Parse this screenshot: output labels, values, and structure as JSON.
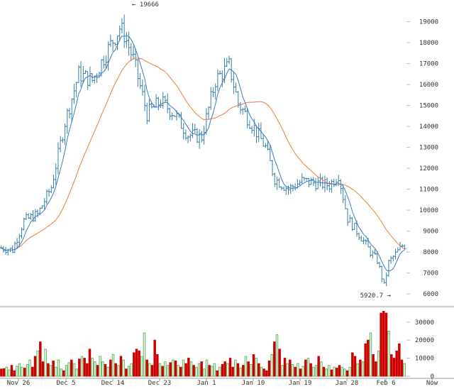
{
  "chart_data": {
    "type": "ohlc",
    "price_axis": {
      "ticks": [
        6000,
        7000,
        8000,
        9000,
        10000,
        11000,
        12000,
        13000,
        14000,
        15000,
        16000,
        17000,
        18000,
        19000
      ],
      "ylim": [
        5800,
        19900
      ]
    },
    "volume_axis": {
      "ticks": [
        0,
        10000,
        20000,
        30000
      ],
      "ylim": [
        0,
        37000
      ]
    },
    "x_labels": [
      "Nov 26",
      "Dec 5",
      "Dec 14",
      "Dec 23",
      "Jan 1",
      "Jan 10",
      "Jan 19",
      "Jan 28",
      "Feb 6",
      "Now"
    ],
    "annotations": {
      "high_label": "19666",
      "low_label": "5920.7"
    },
    "colors": {
      "candle": "#3a7fa6",
      "ema_fast": "#3b7bbf",
      "ema_slow": "#f07a3c",
      "volume_up": "#5cb85c",
      "volume_down": "#cc0000",
      "grid": "#bbbbbb"
    },
    "keypoints_close": [
      [
        0,
        8200
      ],
      [
        5,
        8100
      ],
      [
        10,
        9500
      ],
      [
        16,
        9800
      ],
      [
        22,
        11100
      ],
      [
        28,
        14200
      ],
      [
        34,
        16500
      ],
      [
        40,
        16200
      ],
      [
        46,
        17500
      ],
      [
        52,
        18700
      ],
      [
        54,
        18400
      ],
      [
        58,
        17200
      ],
      [
        64,
        14600
      ],
      [
        70,
        15200
      ],
      [
        76,
        14600
      ],
      [
        82,
        13600
      ],
      [
        88,
        13500
      ],
      [
        94,
        16200
      ],
      [
        100,
        16900
      ],
      [
        104,
        15100
      ],
      [
        110,
        14100
      ],
      [
        116,
        13000
      ],
      [
        120,
        11500
      ],
      [
        126,
        11000
      ],
      [
        132,
        11400
      ],
      [
        138,
        11300
      ],
      [
        144,
        11200
      ],
      [
        148,
        11700
      ],
      [
        152,
        9600
      ],
      [
        158,
        8700
      ],
      [
        162,
        8000
      ],
      [
        165,
        7600
      ],
      [
        168,
        6400
      ],
      [
        170,
        7500
      ],
      [
        176,
        8300
      ]
    ],
    "volume_bars": [
      {
        "v": 4000,
        "up": false
      },
      {
        "v": 4200,
        "up": false
      },
      {
        "v": 5000,
        "up": true
      },
      {
        "v": 3500,
        "up": true
      },
      {
        "v": 6000,
        "up": false
      },
      {
        "v": 3000,
        "up": false
      },
      {
        "v": 5500,
        "up": true
      },
      {
        "v": 7000,
        "up": true
      },
      {
        "v": 5000,
        "up": true
      },
      {
        "v": 4500,
        "up": false
      },
      {
        "v": 6500,
        "up": true
      },
      {
        "v": 9000,
        "up": true
      },
      {
        "v": 5000,
        "up": false
      },
      {
        "v": 11000,
        "up": false
      },
      {
        "v": 14000,
        "up": true
      },
      {
        "v": 19000,
        "up": false
      },
      {
        "v": 8000,
        "up": false
      },
      {
        "v": 15000,
        "up": true
      },
      {
        "v": 7000,
        "up": false
      },
      {
        "v": 6000,
        "up": true
      },
      {
        "v": 8500,
        "up": false
      },
      {
        "v": 5000,
        "up": true
      },
      {
        "v": 9000,
        "up": true
      },
      {
        "v": 4000,
        "up": true
      },
      {
        "v": 3000,
        "up": false
      },
      {
        "v": 6000,
        "up": true
      },
      {
        "v": 7500,
        "up": true
      },
      {
        "v": 9000,
        "up": false
      },
      {
        "v": 7000,
        "up": true
      },
      {
        "v": 4000,
        "up": true
      },
      {
        "v": 9500,
        "up": false
      },
      {
        "v": 11000,
        "up": true
      },
      {
        "v": 10000,
        "up": false
      },
      {
        "v": 7000,
        "up": false
      },
      {
        "v": 15000,
        "up": false
      },
      {
        "v": 10000,
        "up": true
      },
      {
        "v": 8000,
        "up": true
      },
      {
        "v": 6000,
        "up": false
      },
      {
        "v": 11000,
        "up": true
      },
      {
        "v": 8000,
        "up": true
      },
      {
        "v": 6500,
        "up": false
      },
      {
        "v": 5000,
        "up": true
      },
      {
        "v": 9000,
        "up": false
      },
      {
        "v": 12000,
        "up": true
      },
      {
        "v": 7000,
        "up": false
      },
      {
        "v": 6000,
        "up": true
      },
      {
        "v": 11000,
        "up": false
      },
      {
        "v": 9000,
        "up": true
      },
      {
        "v": 4000,
        "up": false
      },
      {
        "v": 5500,
        "up": true
      },
      {
        "v": 7000,
        "up": true
      },
      {
        "v": 13000,
        "up": false
      },
      {
        "v": 15000,
        "up": false
      },
      {
        "v": 14000,
        "up": false
      },
      {
        "v": 11000,
        "up": true
      },
      {
        "v": 24000,
        "up": true
      },
      {
        "v": 9000,
        "up": false
      },
      {
        "v": 7000,
        "up": true
      },
      {
        "v": 6000,
        "up": false
      },
      {
        "v": 20000,
        "up": false
      },
      {
        "v": 12000,
        "up": false
      },
      {
        "v": 7000,
        "up": true
      },
      {
        "v": 5500,
        "up": false
      },
      {
        "v": 8000,
        "up": true
      },
      {
        "v": 6000,
        "up": true
      },
      {
        "v": 7500,
        "up": false
      },
      {
        "v": 9000,
        "up": true
      },
      {
        "v": 8500,
        "up": false
      },
      {
        "v": 6000,
        "up": true
      },
      {
        "v": 5000,
        "up": false
      },
      {
        "v": 9000,
        "up": true
      },
      {
        "v": 7000,
        "up": false
      },
      {
        "v": 10000,
        "up": false
      },
      {
        "v": 8000,
        "up": true
      },
      {
        "v": 6000,
        "up": false
      },
      {
        "v": 5000,
        "up": true
      },
      {
        "v": 7000,
        "up": true
      },
      {
        "v": 8000,
        "up": false
      },
      {
        "v": 4000,
        "up": true
      },
      {
        "v": 9000,
        "up": true
      },
      {
        "v": 6000,
        "up": false
      },
      {
        "v": 5500,
        "up": true
      },
      {
        "v": 7000,
        "up": true
      },
      {
        "v": 3000,
        "up": false
      },
      {
        "v": 5000,
        "up": true
      },
      {
        "v": 6500,
        "up": false
      },
      {
        "v": 8000,
        "up": false
      },
      {
        "v": 7000,
        "up": true
      },
      {
        "v": 10000,
        "up": false
      },
      {
        "v": 5000,
        "up": false
      },
      {
        "v": 9000,
        "up": true
      },
      {
        "v": 7000,
        "up": false
      },
      {
        "v": 4500,
        "up": true
      },
      {
        "v": 6000,
        "up": false
      },
      {
        "v": 11000,
        "up": true
      },
      {
        "v": 8000,
        "up": false
      },
      {
        "v": 6500,
        "up": true
      },
      {
        "v": 12000,
        "up": false
      },
      {
        "v": 10000,
        "up": true
      },
      {
        "v": 7000,
        "up": false
      },
      {
        "v": 5000,
        "up": true
      },
      {
        "v": 4000,
        "up": false
      },
      {
        "v": 3000,
        "up": false
      },
      {
        "v": 8500,
        "up": false
      },
      {
        "v": 12000,
        "up": true
      },
      {
        "v": 19000,
        "up": false
      },
      {
        "v": 23000,
        "up": true
      },
      {
        "v": 15000,
        "up": false
      },
      {
        "v": 6000,
        "up": true
      },
      {
        "v": 10000,
        "up": false
      },
      {
        "v": 7000,
        "up": true
      },
      {
        "v": 9000,
        "up": false
      },
      {
        "v": 6500,
        "up": true
      },
      {
        "v": 5000,
        "up": false
      },
      {
        "v": 7000,
        "up": true
      },
      {
        "v": 4000,
        "up": false
      },
      {
        "v": 5500,
        "up": true
      },
      {
        "v": 9000,
        "up": false
      },
      {
        "v": 10000,
        "up": true
      },
      {
        "v": 7000,
        "up": false
      },
      {
        "v": 5000,
        "up": true
      },
      {
        "v": 6000,
        "up": true
      },
      {
        "v": 11000,
        "up": false
      },
      {
        "v": 8000,
        "up": true
      },
      {
        "v": 5000,
        "up": false
      },
      {
        "v": 4000,
        "up": true
      },
      {
        "v": 6000,
        "up": true
      },
      {
        "v": 3500,
        "up": false
      },
      {
        "v": 5000,
        "up": true
      },
      {
        "v": 4500,
        "up": false
      },
      {
        "v": 6000,
        "up": false
      },
      {
        "v": 5000,
        "up": true
      },
      {
        "v": 4000,
        "up": true
      },
      {
        "v": 3000,
        "up": false
      },
      {
        "v": 5000,
        "up": true
      },
      {
        "v": 13000,
        "up": false
      },
      {
        "v": 11000,
        "up": false
      },
      {
        "v": 7000,
        "up": true
      },
      {
        "v": 9000,
        "up": false
      },
      {
        "v": 8000,
        "up": true
      },
      {
        "v": 18000,
        "up": false
      },
      {
        "v": 20000,
        "up": false
      },
      {
        "v": 24000,
        "up": true
      },
      {
        "v": 12000,
        "up": false
      },
      {
        "v": 8000,
        "up": false
      },
      {
        "v": 14000,
        "up": true
      },
      {
        "v": 35000,
        "up": false
      },
      {
        "v": 36000,
        "up": false
      },
      {
        "v": 35000,
        "up": false
      },
      {
        "v": 25000,
        "up": true
      },
      {
        "v": 12000,
        "up": false
      },
      {
        "v": 10000,
        "up": false
      },
      {
        "v": 14000,
        "up": false
      },
      {
        "v": 18000,
        "up": false
      },
      {
        "v": 9000,
        "up": false
      },
      {
        "v": 7000,
        "up": true
      }
    ]
  }
}
